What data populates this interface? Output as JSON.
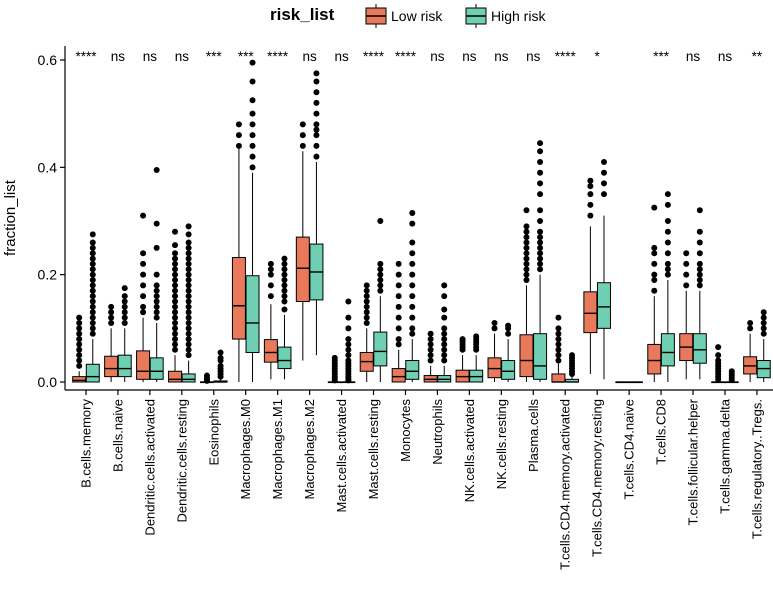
{
  "chart_data": {
    "type": "boxplot",
    "title": "",
    "xlabel": "",
    "ylabel": "fraction_list",
    "ylim": [
      0,
      0.6
    ],
    "yticks": [
      0.0,
      0.2,
      0.4,
      0.6
    ],
    "ytick_labels": [
      "0.0",
      "0.2",
      "0.4",
      "0.6"
    ],
    "legend": {
      "title": "risk_list",
      "position": "top",
      "entries": [
        {
          "name": "Low risk",
          "color": "#E8795A"
        },
        {
          "name": "High risk",
          "color": "#6FCFB2"
        }
      ]
    },
    "categories": [
      {
        "name": "B.cells.memory",
        "sig": "****",
        "low": {
          "whislo": 0,
          "q1": 0,
          "med": 0.003,
          "q3": 0.01,
          "whishi": 0.02,
          "outliers": [
            0.03,
            0.04,
            0.05,
            0.06,
            0.07,
            0.08,
            0.09,
            0.1,
            0.11,
            0.12
          ]
        },
        "high": {
          "whislo": 0,
          "q1": 0,
          "med": 0.01,
          "q3": 0.033,
          "whishi": 0.08,
          "outliers": [
            0.09,
            0.1,
            0.11,
            0.12,
            0.13,
            0.14,
            0.15,
            0.16,
            0.17,
            0.18,
            0.19,
            0.2,
            0.21,
            0.22,
            0.23,
            0.24,
            0.25,
            0.26,
            0.275
          ]
        }
      },
      {
        "name": "B.cells.naive",
        "sig": "ns",
        "low": {
          "whislo": 0,
          "q1": 0.01,
          "med": 0.025,
          "q3": 0.048,
          "whishi": 0.1,
          "outliers": [
            0.11,
            0.12,
            0.13,
            0.14
          ]
        },
        "high": {
          "whislo": 0,
          "q1": 0.01,
          "med": 0.025,
          "q3": 0.05,
          "whishi": 0.1,
          "outliers": [
            0.11,
            0.12,
            0.13,
            0.14,
            0.15,
            0.16,
            0.175
          ]
        }
      },
      {
        "name": "Dendritic.cells.activated",
        "sig": "ns",
        "low": {
          "whislo": 0,
          "q1": 0.005,
          "med": 0.02,
          "q3": 0.058,
          "whishi": 0.12,
          "outliers": [
            0.13,
            0.14,
            0.16,
            0.18,
            0.2,
            0.22,
            0.24,
            0.31
          ]
        },
        "high": {
          "whislo": 0,
          "q1": 0.005,
          "med": 0.02,
          "q3": 0.045,
          "whishi": 0.11,
          "outliers": [
            0.12,
            0.13,
            0.14,
            0.15,
            0.16,
            0.17,
            0.18,
            0.2,
            0.25,
            0.295,
            0.395
          ]
        }
      },
      {
        "name": "Dendritic.cells.resting",
        "sig": "ns",
        "low": {
          "whislo": 0,
          "q1": 0,
          "med": 0.005,
          "q3": 0.02,
          "whishi": 0.05,
          "outliers": [
            0.06,
            0.07,
            0.08,
            0.09,
            0.1,
            0.11,
            0.12,
            0.13,
            0.14,
            0.15,
            0.16,
            0.17,
            0.18,
            0.19,
            0.2,
            0.21,
            0.22,
            0.23,
            0.24,
            0.255,
            0.28
          ]
        },
        "high": {
          "whislo": 0,
          "q1": 0,
          "med": 0.005,
          "q3": 0.015,
          "whishi": 0.04,
          "outliers": [
            0.05,
            0.06,
            0.07,
            0.08,
            0.09,
            0.1,
            0.11,
            0.12,
            0.13,
            0.14,
            0.15,
            0.16,
            0.17,
            0.18,
            0.19,
            0.2,
            0.21,
            0.22,
            0.23,
            0.24,
            0.25,
            0.26,
            0.275,
            0.29
          ]
        }
      },
      {
        "name": "Eosinophils",
        "sig": "***",
        "low": {
          "whislo": 0,
          "q1": 0,
          "med": 0,
          "q3": 0,
          "whishi": 0,
          "outliers": [
            0.002,
            0.005,
            0.008,
            0.012
          ]
        },
        "high": {
          "whislo": 0,
          "q1": 0,
          "med": 0,
          "q3": 0.002,
          "whishi": 0.005,
          "outliers": [
            0.01,
            0.015,
            0.02,
            0.025,
            0.03,
            0.04,
            0.045,
            0.055
          ]
        }
      },
      {
        "name": "Macrophages.M0",
        "sig": "***",
        "low": {
          "whislo": 0,
          "q1": 0.08,
          "med": 0.142,
          "q3": 0.232,
          "whishi": 0.435,
          "outliers": [
            0.44,
            0.46,
            0.48
          ]
        },
        "high": {
          "whislo": 0,
          "q1": 0.055,
          "med": 0.11,
          "q3": 0.198,
          "whishi": 0.39,
          "outliers": [
            0.4,
            0.42,
            0.44,
            0.46,
            0.48,
            0.5,
            0.525,
            0.56,
            0.595
          ]
        }
      },
      {
        "name": "Macrophages.M1",
        "sig": "****",
        "low": {
          "whislo": 0.005,
          "q1": 0.037,
          "med": 0.055,
          "q3": 0.079,
          "whishi": 0.145,
          "outliers": [
            0.16,
            0.18,
            0.2,
            0.21,
            0.22
          ]
        },
        "high": {
          "whislo": 0.005,
          "q1": 0.025,
          "med": 0.04,
          "q3": 0.065,
          "whishi": 0.125,
          "outliers": [
            0.135,
            0.15,
            0.16,
            0.17,
            0.18,
            0.19,
            0.2,
            0.21,
            0.22,
            0.23
          ]
        }
      },
      {
        "name": "Macrophages.M2",
        "sig": "ns",
        "low": {
          "whislo": 0.04,
          "q1": 0.15,
          "med": 0.212,
          "q3": 0.27,
          "whishi": 0.43,
          "outliers": [
            0.44,
            0.46,
            0.48
          ]
        },
        "high": {
          "whislo": 0.05,
          "q1": 0.153,
          "med": 0.205,
          "q3": 0.257,
          "whishi": 0.41,
          "outliers": [
            0.42,
            0.44,
            0.46,
            0.47,
            0.48,
            0.5,
            0.52,
            0.54,
            0.56,
            0.575
          ]
        }
      },
      {
        "name": "Mast.cells.activated",
        "sig": "ns",
        "low": {
          "whislo": 0,
          "q1": 0,
          "med": 0,
          "q3": 0,
          "whishi": 0,
          "outliers": [
            0.003,
            0.006,
            0.01,
            0.015,
            0.02,
            0.025,
            0.03,
            0.035,
            0.04,
            0.045
          ]
        },
        "high": {
          "whislo": 0,
          "q1": 0,
          "med": 0,
          "q3": 0,
          "whishi": 0,
          "outliers": [
            0.003,
            0.006,
            0.01,
            0.015,
            0.02,
            0.025,
            0.03,
            0.035,
            0.04,
            0.05,
            0.06,
            0.07,
            0.08,
            0.1,
            0.12,
            0.15
          ]
        }
      },
      {
        "name": "Mast.cells.resting",
        "sig": "****",
        "low": {
          "whislo": 0,
          "q1": 0.02,
          "med": 0.038,
          "q3": 0.055,
          "whishi": 0.1,
          "outliers": [
            0.11,
            0.12,
            0.13,
            0.14,
            0.15,
            0.16,
            0.17,
            0.18
          ]
        },
        "high": {
          "whislo": 0,
          "q1": 0.03,
          "med": 0.057,
          "q3": 0.093,
          "whishi": 0.16,
          "outliers": [
            0.17,
            0.18,
            0.19,
            0.2,
            0.21,
            0.22,
            0.3
          ]
        }
      },
      {
        "name": "Monocytes",
        "sig": "****",
        "low": {
          "whislo": 0,
          "q1": 0,
          "med": 0.01,
          "q3": 0.025,
          "whishi": 0.06,
          "outliers": [
            0.07,
            0.08,
            0.1,
            0.12,
            0.14,
            0.16,
            0.18,
            0.2,
            0.22
          ]
        },
        "high": {
          "whislo": 0,
          "q1": 0.005,
          "med": 0.02,
          "q3": 0.04,
          "whishi": 0.08,
          "outliers": [
            0.09,
            0.1,
            0.12,
            0.14,
            0.16,
            0.18,
            0.2,
            0.22,
            0.24,
            0.26,
            0.295,
            0.315
          ]
        }
      },
      {
        "name": "Neutrophils",
        "sig": "ns",
        "low": {
          "whislo": 0,
          "q1": 0,
          "med": 0.005,
          "q3": 0.012,
          "whishi": 0.03,
          "outliers": [
            0.04,
            0.05,
            0.06,
            0.07,
            0.08,
            0.09
          ]
        },
        "high": {
          "whislo": 0,
          "q1": 0,
          "med": 0.005,
          "q3": 0.012,
          "whishi": 0.03,
          "outliers": [
            0.04,
            0.05,
            0.06,
            0.07,
            0.08,
            0.09,
            0.1,
            0.12,
            0.135,
            0.16,
            0.18
          ]
        }
      },
      {
        "name": "NK.cells.activated",
        "sig": "ns",
        "low": {
          "whislo": 0,
          "q1": 0,
          "med": 0.01,
          "q3": 0.022,
          "whishi": 0.05,
          "outliers": [
            0.06,
            0.065,
            0.07,
            0.075,
            0.08
          ]
        },
        "high": {
          "whislo": 0,
          "q1": 0,
          "med": 0.01,
          "q3": 0.022,
          "whishi": 0.05,
          "outliers": [
            0.06,
            0.065,
            0.07,
            0.075,
            0.08,
            0.085
          ]
        }
      },
      {
        "name": "NK.cells.resting",
        "sig": "ns",
        "low": {
          "whislo": 0,
          "q1": 0.008,
          "med": 0.025,
          "q3": 0.045,
          "whishi": 0.09,
          "outliers": [
            0.1,
            0.11
          ]
        },
        "high": {
          "whislo": 0,
          "q1": 0.005,
          "med": 0.02,
          "q3": 0.04,
          "whishi": 0.08,
          "outliers": [
            0.09,
            0.1,
            0.105
          ]
        }
      },
      {
        "name": "Plasma.cells",
        "sig": "ns",
        "low": {
          "whislo": 0,
          "q1": 0.01,
          "med": 0.04,
          "q3": 0.088,
          "whishi": 0.18,
          "outliers": [
            0.19,
            0.2,
            0.21,
            0.22,
            0.23,
            0.24,
            0.25,
            0.26,
            0.27,
            0.28,
            0.29,
            0.32
          ]
        },
        "high": {
          "whislo": 0,
          "q1": 0.005,
          "med": 0.03,
          "q3": 0.09,
          "whishi": 0.2,
          "outliers": [
            0.21,
            0.22,
            0.23,
            0.24,
            0.25,
            0.26,
            0.27,
            0.28,
            0.3,
            0.32,
            0.35,
            0.37,
            0.39,
            0.41,
            0.43,
            0.445
          ]
        }
      },
      {
        "name": "T.cells.CD4.memory.activated",
        "sig": "****",
        "low": {
          "whislo": 0,
          "q1": 0,
          "med": 0,
          "q3": 0.015,
          "whishi": 0.035,
          "outliers": [
            0.04,
            0.05,
            0.06,
            0.07,
            0.08,
            0.09,
            0.1,
            0.12
          ]
        },
        "high": {
          "whislo": 0,
          "q1": 0,
          "med": 0,
          "q3": 0.005,
          "whishi": 0.012,
          "outliers": [
            0.015,
            0.02,
            0.025,
            0.03,
            0.035,
            0.04,
            0.045,
            0.05
          ]
        }
      },
      {
        "name": "T.cells.CD4.memory.resting",
        "sig": "*",
        "low": {
          "whislo": 0.015,
          "q1": 0.092,
          "med": 0.128,
          "q3": 0.168,
          "whishi": 0.29,
          "outliers": [
            0.31,
            0.33,
            0.35,
            0.365,
            0.375
          ]
        },
        "high": {
          "whislo": 0.005,
          "q1": 0.1,
          "med": 0.14,
          "q3": 0.185,
          "whishi": 0.31,
          "outliers": [
            0.35,
            0.37,
            0.39,
            0.41
          ]
        }
      },
      {
        "name": "T.cells.CD4.naive",
        "sig": "",
        "low": {
          "whislo": 0,
          "q1": 0,
          "med": 0,
          "q3": 0,
          "whishi": 0,
          "outliers": []
        },
        "high": {
          "whislo": 0,
          "q1": 0,
          "med": 0,
          "q3": 0,
          "whishi": 0,
          "outliers": []
        }
      },
      {
        "name": "T.cells.CD8",
        "sig": "***",
        "low": {
          "whislo": 0,
          "q1": 0.015,
          "med": 0.04,
          "q3": 0.07,
          "whishi": 0.16,
          "outliers": [
            0.17,
            0.19,
            0.2,
            0.22,
            0.24,
            0.25,
            0.325
          ]
        },
        "high": {
          "whislo": 0,
          "q1": 0.03,
          "med": 0.055,
          "q3": 0.09,
          "whishi": 0.19,
          "outliers": [
            0.2,
            0.21,
            0.22,
            0.24,
            0.26,
            0.28,
            0.3,
            0.33,
            0.35
          ]
        }
      },
      {
        "name": "T.cells.follicular.helper",
        "sig": "ns",
        "low": {
          "whislo": 0.005,
          "q1": 0.04,
          "med": 0.065,
          "q3": 0.09,
          "whishi": 0.17,
          "outliers": [
            0.18,
            0.2,
            0.22,
            0.24
          ]
        },
        "high": {
          "whislo": 0.005,
          "q1": 0.035,
          "med": 0.06,
          "q3": 0.09,
          "whishi": 0.17,
          "outliers": [
            0.18,
            0.19,
            0.2,
            0.21,
            0.22,
            0.24,
            0.26,
            0.28,
            0.32
          ]
        }
      },
      {
        "name": "T.cells.gamma.delta",
        "sig": "ns",
        "low": {
          "whislo": 0,
          "q1": 0,
          "med": 0,
          "q3": 0,
          "whishi": 0,
          "outliers": [
            0.005,
            0.01,
            0.015,
            0.02,
            0.025,
            0.03,
            0.035,
            0.04,
            0.05,
            0.065
          ]
        },
        "high": {
          "whislo": 0,
          "q1": 0,
          "med": 0,
          "q3": 0,
          "whishi": 0,
          "outliers": [
            0.004,
            0.008,
            0.012,
            0.016,
            0.02
          ]
        }
      },
      {
        "name": "T.cells.regulatory..Tregs.",
        "sig": "**",
        "low": {
          "whislo": 0,
          "q1": 0.015,
          "med": 0.03,
          "q3": 0.047,
          "whishi": 0.09,
          "outliers": [
            0.1,
            0.11
          ]
        },
        "high": {
          "whislo": 0,
          "q1": 0.008,
          "med": 0.025,
          "q3": 0.04,
          "whishi": 0.08,
          "outliers": [
            0.09,
            0.1,
            0.11,
            0.12,
            0.13
          ]
        }
      }
    ]
  }
}
